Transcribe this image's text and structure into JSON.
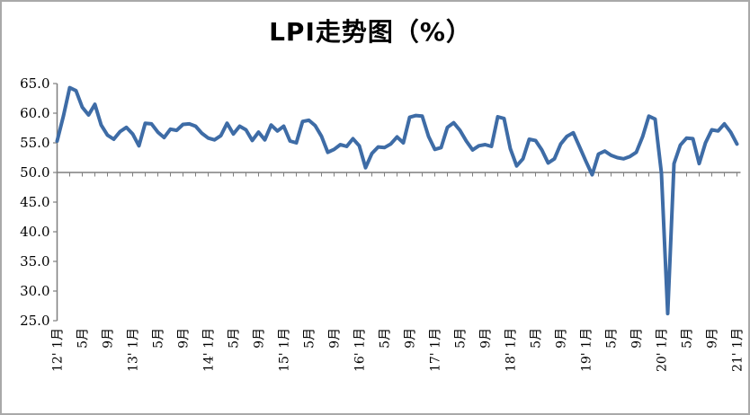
{
  "window": {
    "background": "#FFFFFF",
    "border_color": "#A9A9A9"
  },
  "chart_data": {
    "type": "line",
    "title": "LPI走势图（%）",
    "xlabel": "",
    "ylabel": "",
    "ylim": [
      25,
      65
    ],
    "y_tick_step": 5,
    "y_tick_labels": [
      "65.0",
      "60.0",
      "55.0",
      "50.0",
      "45.0",
      "40.0",
      "35.0",
      "30.0",
      "25.0"
    ],
    "x_axis_crosses_at": 50,
    "x_range_months": [
      "2012-01",
      "2021-01"
    ],
    "x_tick_mark_interval_months": 2,
    "x_label_month_positions": [
      0,
      4,
      8,
      12,
      16,
      20,
      24,
      28,
      32,
      36,
      40,
      44,
      48,
      52,
      56,
      60,
      64,
      68,
      72,
      76,
      80,
      84,
      88,
      92,
      96,
      100,
      104,
      108
    ],
    "x_tick_labels": [
      "12' 1月",
      "5月",
      "9月",
      "13' 1月",
      "5月",
      "9月",
      "14' 1月",
      "5月",
      "9月",
      "15' 1月",
      "5月",
      "9月",
      "16' 1月",
      "5月",
      "9月",
      "17' 1月",
      "5月",
      "9月",
      "18' 1月",
      "5月",
      "9月",
      "19' 1月",
      "5月",
      "9月",
      "20' 1月",
      "5月",
      "9月",
      "21' 1月"
    ],
    "grid": "off",
    "legend": "none",
    "axis_color": "#7F7F7F",
    "series": [
      {
        "name": "LPI",
        "color": "#3E6CA6",
        "start": "2012-01",
        "frequency": "monthly",
        "values": [
          55.3,
          59.5,
          64.3,
          63.8,
          61.0,
          59.7,
          61.5,
          58.0,
          56.3,
          55.6,
          56.9,
          57.6,
          56.5,
          54.5,
          58.3,
          58.2,
          56.8,
          55.9,
          57.3,
          57.1,
          58.1,
          58.2,
          57.8,
          56.6,
          55.8,
          55.5,
          56.2,
          58.3,
          56.5,
          57.8,
          57.2,
          55.4,
          56.8,
          55.5,
          58.0,
          57.0,
          57.8,
          55.3,
          55.0,
          58.6,
          58.8,
          57.9,
          56.1,
          53.4,
          53.9,
          54.7,
          54.4,
          55.7,
          54.5,
          50.8,
          53.2,
          54.3,
          54.2,
          54.8,
          56.0,
          55.0,
          59.3,
          59.6,
          59.5,
          56.1,
          53.9,
          54.2,
          57.6,
          58.4,
          57.1,
          55.3,
          53.8,
          54.5,
          54.7,
          54.4,
          59.4,
          59.1,
          54.0,
          51.1,
          52.3,
          55.6,
          55.4,
          53.8,
          51.6,
          52.3,
          54.8,
          56.1,
          56.7,
          54.3,
          51.9,
          49.6,
          53.1,
          53.6,
          52.9,
          52.5,
          52.3,
          52.7,
          53.4,
          56.0,
          59.5,
          59.0,
          49.9,
          26.2,
          51.5,
          54.6,
          55.8,
          55.7,
          51.5,
          55.0,
          57.2,
          57.0,
          58.2,
          56.8,
          54.8
        ]
      }
    ]
  }
}
